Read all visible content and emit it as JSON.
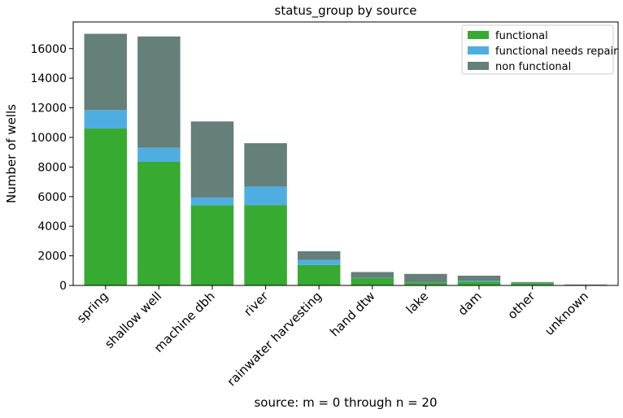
{
  "chart_data": {
    "type": "bar",
    "stacked": true,
    "title": "status_group by source",
    "xlabel": "source: m = 0 through n = 20",
    "ylabel": "Number of wells",
    "ylim": [
      0,
      17800
    ],
    "yticks": [
      0,
      2000,
      4000,
      6000,
      8000,
      10000,
      12000,
      14000,
      16000
    ],
    "grid": false,
    "legend_position": "top-right",
    "categories": [
      "spring",
      "shallow well",
      "machine dbh",
      "river",
      "rainwater harvesting",
      "hand dtw",
      "lake",
      "dam",
      "other",
      "unknown"
    ],
    "series": [
      {
        "name": "functional",
        "color": "#37aa31",
        "values": [
          10600,
          8350,
          5420,
          5430,
          1380,
          490,
          170,
          250,
          160,
          30
        ]
      },
      {
        "name": "functional needs repair",
        "color": "#4faee1",
        "values": [
          1250,
          950,
          520,
          1250,
          340,
          15,
          10,
          60,
          10,
          5
        ]
      },
      {
        "name": "non functional",
        "color": "#657f79",
        "values": [
          5150,
          7520,
          5140,
          2930,
          590,
          400,
          600,
          350,
          60,
          30
        ]
      }
    ]
  }
}
